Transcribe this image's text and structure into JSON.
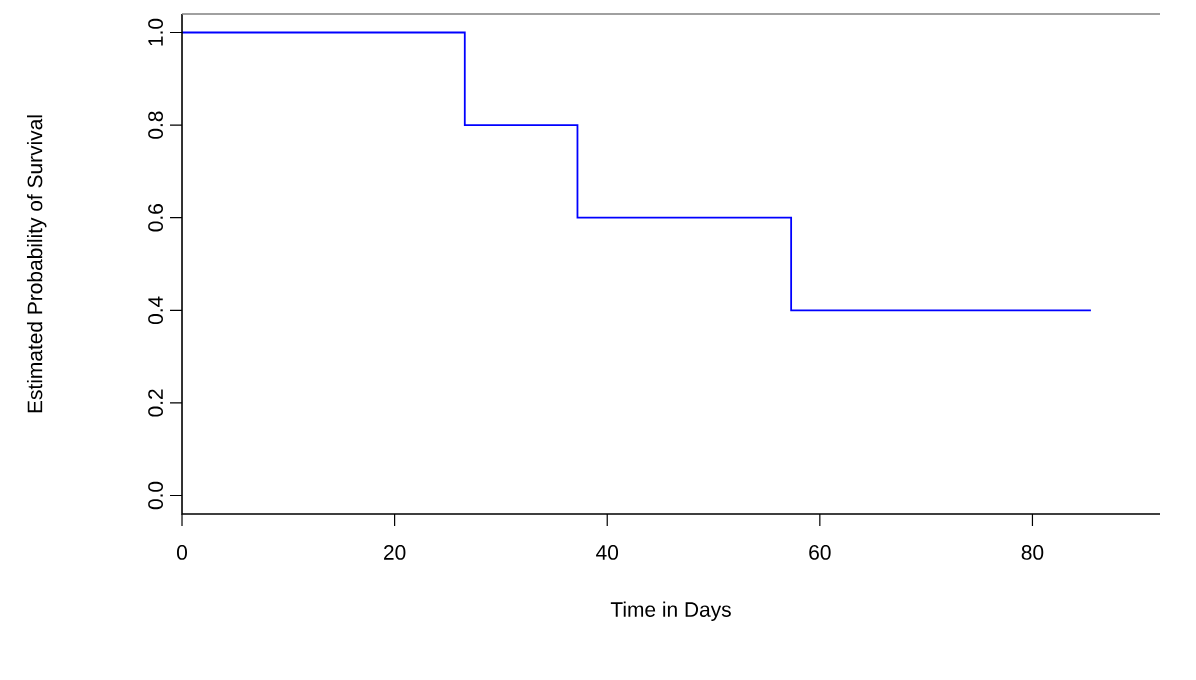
{
  "chart_data": {
    "type": "step",
    "xlabel": "Time in Days",
    "ylabel": "Estimated Probability of Survival",
    "x": [
      0,
      26.6,
      37.2,
      57.3,
      85.5
    ],
    "series": [
      {
        "color": "#0000ff",
        "values": [
          1.0,
          0.8,
          0.6,
          0.4,
          0.4
        ]
      }
    ],
    "xlim": [
      0,
      92
    ],
    "ylim": [
      -0.04,
      1.04
    ],
    "xticks": [
      0,
      20,
      40,
      60,
      80
    ],
    "yticks": [
      {
        "value": 0,
        "label": "0.0"
      },
      {
        "value": 0.2,
        "label": "0.2"
      },
      {
        "value": 0.4,
        "label": "0.4"
      },
      {
        "value": 0.6,
        "label": "0.6"
      },
      {
        "value": 0.8,
        "label": "0.8"
      },
      {
        "value": 1,
        "label": "1.0"
      }
    ],
    "grid": false
  }
}
